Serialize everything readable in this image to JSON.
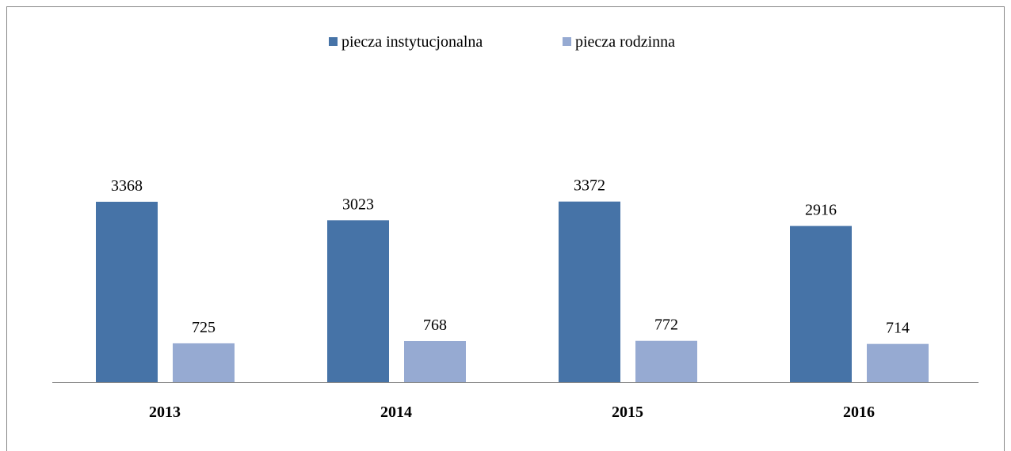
{
  "chart_data": {
    "type": "bar",
    "categories": [
      "2013",
      "2014",
      "2015",
      "2016"
    ],
    "series": [
      {
        "name": "piecza instytucjonalna",
        "color": "#4673a7",
        "values": [
          3368,
          3023,
          3372,
          2916
        ]
      },
      {
        "name": "piecza rodzinna",
        "color": "#96aad2",
        "values": [
          725,
          768,
          772,
          714
        ]
      }
    ],
    "legend": "top"
  }
}
